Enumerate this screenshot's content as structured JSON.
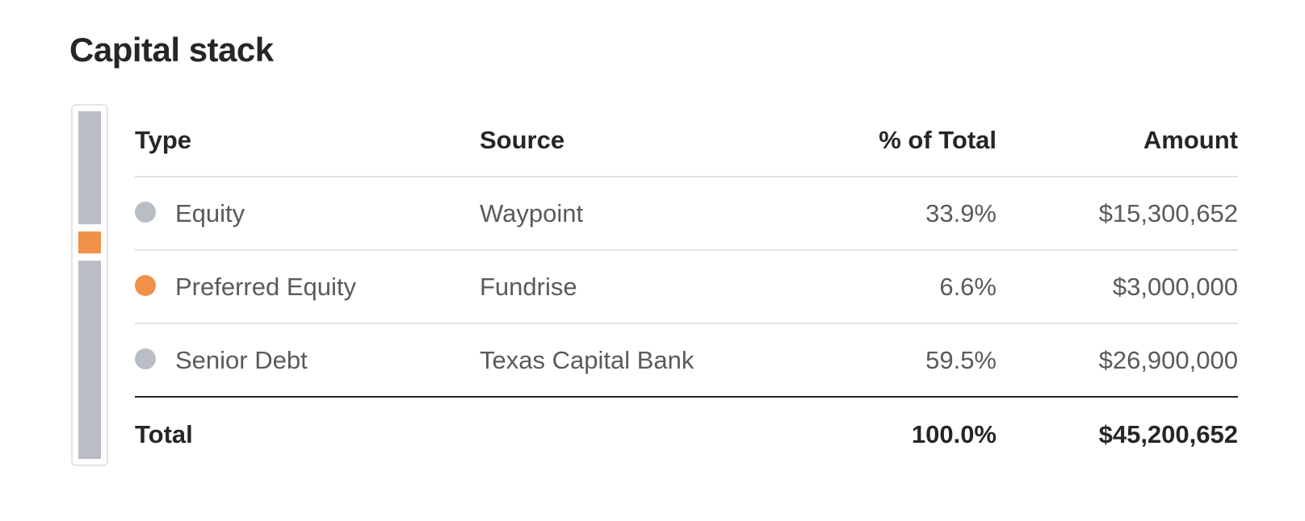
{
  "header": {
    "title": "Capital stack"
  },
  "table": {
    "columns": [
      "Type",
      "Source",
      "% of Total",
      "Amount"
    ],
    "rows": [
      {
        "type": "Equity",
        "source": "Waypoint",
        "percent": "33.9%",
        "amount": "$15,300,652",
        "color": "#b9bec5"
      },
      {
        "type": "Preferred Equity",
        "source": "Fundrise",
        "percent": "6.6%",
        "amount": "$3,000,000",
        "color": "#f0914a"
      },
      {
        "type": "Senior Debt",
        "source": "Texas Capital Bank",
        "percent": "59.5%",
        "amount": "$26,900,000",
        "color": "#b9bec5"
      }
    ],
    "total": {
      "label": "Total",
      "percent": "100.0%",
      "amount": "$45,200,652"
    }
  }
}
